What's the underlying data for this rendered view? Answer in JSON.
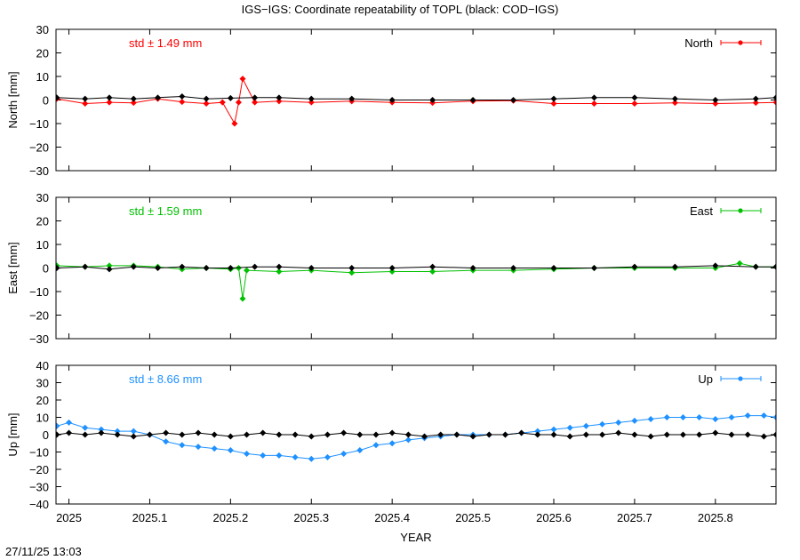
{
  "title": "IGS−IGS: Coordinate repeatability of TOPL (black: COD−IGS)",
  "xlabel": "YEAR",
  "timestamp": "27/11/25 13:03",
  "chart_data": {
    "type": "scatter",
    "title": "IGS−IGS: Coordinate repeatability of TOPL (black: COD−IGS)",
    "xlabel": "YEAR",
    "xlim": [
      2024.984,
      2025.875
    ],
    "xticks": [
      2025,
      2025.1,
      2025.2,
      2025.3,
      2025.4,
      2025.5,
      2025.6,
      2025.7,
      2025.8
    ],
    "xtick_labels": [
      "2025",
      "2025.1",
      "2025.2",
      "2025.3",
      "2025.4",
      "2025.5",
      "2025.6",
      "2025.7",
      "2025.8"
    ],
    "grid": false,
    "legend_position": "top-right",
    "panels": [
      {
        "key": "north",
        "ylabel": "North [mm]",
        "ylim": [
          -30,
          30
        ],
        "yticks": [
          -30,
          -20,
          -10,
          0,
          10,
          20,
          30
        ],
        "ytick_labels": [
          "−30",
          "−20",
          "−10",
          "0",
          "10",
          "20",
          "30"
        ],
        "std_label": "std ± 1.49 mm",
        "series": [
          {
            "name": "North",
            "color": "#ff0000",
            "x": [
              2024.985,
              2025.02,
              2025.05,
              2025.08,
              2025.11,
              2025.14,
              2025.17,
              2025.19,
              2025.205,
              2025.21,
              2025.215,
              2025.23,
              2025.26,
              2025.3,
              2025.35,
              2025.4,
              2025.45,
              2025.5,
              2025.55,
              2025.6,
              2025.65,
              2025.7,
              2025.75,
              2025.8,
              2025.85,
              2025.875
            ],
            "y": [
              0.5,
              -1.5,
              -1,
              -1.2,
              0.5,
              -0.8,
              -1.5,
              -1,
              -10,
              -1,
              9,
              -1,
              -0.5,
              -1,
              -0.5,
              -1,
              -1.2,
              -0.5,
              -0.3,
              -1.5,
              -1.5,
              -1.5,
              -1.2,
              -1.5,
              -1.2,
              -1
            ]
          },
          {
            "name": "COD−IGS",
            "color": "#000000",
            "x": [
              2024.985,
              2025.02,
              2025.05,
              2025.08,
              2025.11,
              2025.14,
              2025.17,
              2025.2,
              2025.23,
              2025.26,
              2025.3,
              2025.35,
              2025.4,
              2025.45,
              2025.5,
              2025.55,
              2025.6,
              2025.65,
              2025.7,
              2025.75,
              2025.8,
              2025.85,
              2025.875
            ],
            "y": [
              1,
              0.5,
              1,
              0.5,
              1,
              1.5,
              0.5,
              0.8,
              1,
              1,
              0.5,
              0.5,
              0,
              0,
              0,
              0,
              0.5,
              1,
              1,
              0.5,
              0,
              0.5,
              1
            ]
          }
        ]
      },
      {
        "key": "east",
        "ylabel": "East [mm]",
        "ylim": [
          -30,
          30
        ],
        "yticks": [
          -30,
          -20,
          -10,
          0,
          10,
          20,
          30
        ],
        "ytick_labels": [
          "−30",
          "−20",
          "−10",
          "0",
          "10",
          "20",
          "30"
        ],
        "std_label": "std ± 1.59 mm",
        "series": [
          {
            "name": "East",
            "color": "#00c000",
            "x": [
              2024.985,
              2025.02,
              2025.05,
              2025.08,
              2025.11,
              2025.14,
              2025.17,
              2025.2,
              2025.21,
              2025.215,
              2025.22,
              2025.26,
              2025.3,
              2025.35,
              2025.4,
              2025.45,
              2025.5,
              2025.55,
              2025.6,
              2025.65,
              2025.7,
              2025.75,
              2025.8,
              2025.83,
              2025.85,
              2025.875
            ],
            "y": [
              1,
              0.5,
              1,
              1,
              0.5,
              -0.5,
              0,
              -0.5,
              0,
              -13,
              -1,
              -1.5,
              -1,
              -2,
              -1.5,
              -1.5,
              -1,
              -1,
              -0.5,
              0,
              0,
              0,
              0,
              2,
              0.5,
              0.5
            ]
          },
          {
            "name": "COD−IGS",
            "color": "#000000",
            "x": [
              2024.985,
              2025.02,
              2025.05,
              2025.08,
              2025.11,
              2025.14,
              2025.17,
              2025.2,
              2025.23,
              2025.26,
              2025.3,
              2025.35,
              2025.4,
              2025.45,
              2025.5,
              2025.55,
              2025.6,
              2025.65,
              2025.7,
              2025.75,
              2025.8,
              2025.85,
              2025.875
            ],
            "y": [
              0,
              0.5,
              -0.5,
              0.5,
              0,
              0.5,
              0,
              0,
              0.5,
              0.5,
              0,
              0,
              0,
              0.5,
              0,
              0,
              0,
              0,
              0.5,
              0.5,
              1,
              0.5,
              0.5
            ]
          }
        ]
      },
      {
        "key": "up",
        "ylabel": "Up [mm]",
        "ylim": [
          -40,
          40
        ],
        "yticks": [
          -40,
          -30,
          -20,
          -10,
          0,
          10,
          20,
          30,
          40
        ],
        "ytick_labels": [
          "−40",
          "−30",
          "−20",
          "−10",
          "0",
          "10",
          "20",
          "30",
          "40"
        ],
        "std_label": "std ± 8.66 mm",
        "series": [
          {
            "name": "Up",
            "color": "#1e90ff",
            "x": [
              2024.985,
              2025.0,
              2025.02,
              2025.04,
              2025.06,
              2025.08,
              2025.1,
              2025.12,
              2025.14,
              2025.16,
              2025.18,
              2025.2,
              2025.22,
              2025.24,
              2025.26,
              2025.28,
              2025.3,
              2025.32,
              2025.34,
              2025.36,
              2025.38,
              2025.4,
              2025.42,
              2025.44,
              2025.46,
              2025.48,
              2025.5,
              2025.52,
              2025.54,
              2025.56,
              2025.58,
              2025.6,
              2025.62,
              2025.64,
              2025.66,
              2025.68,
              2025.7,
              2025.72,
              2025.74,
              2025.76,
              2025.78,
              2025.8,
              2025.82,
              2025.84,
              2025.86,
              2025.875
            ],
            "y": [
              5,
              7,
              4,
              3,
              2,
              2,
              0,
              -4,
              -6,
              -7,
              -8,
              -9,
              -11,
              -12,
              -12,
              -13,
              -14,
              -13,
              -11,
              -9,
              -6,
              -5,
              -3,
              -2,
              -1,
              0,
              0,
              0,
              0,
              1,
              2,
              3,
              4,
              5,
              6,
              7,
              8,
              9,
              10,
              10,
              10,
              9,
              10,
              11,
              11,
              10
            ]
          },
          {
            "name": "COD−IGS",
            "color": "#000000",
            "x": [
              2024.985,
              2025.0,
              2025.02,
              2025.04,
              2025.06,
              2025.08,
              2025.1,
              2025.12,
              2025.14,
              2025.16,
              2025.18,
              2025.2,
              2025.22,
              2025.24,
              2025.26,
              2025.28,
              2025.3,
              2025.32,
              2025.34,
              2025.36,
              2025.38,
              2025.4,
              2025.42,
              2025.44,
              2025.46,
              2025.48,
              2025.5,
              2025.52,
              2025.54,
              2025.56,
              2025.58,
              2025.6,
              2025.62,
              2025.64,
              2025.66,
              2025.68,
              2025.7,
              2025.72,
              2025.74,
              2025.76,
              2025.78,
              2025.8,
              2025.82,
              2025.84,
              2025.86,
              2025.875
            ],
            "y": [
              0,
              1,
              0,
              1,
              0,
              -1,
              0,
              1,
              0,
              1,
              0,
              -1,
              0,
              1,
              0,
              0,
              -1,
              0,
              1,
              0,
              0,
              1,
              0,
              -1,
              0,
              0,
              -1,
              0,
              0,
              1,
              0,
              0,
              -1,
              0,
              0,
              1,
              0,
              -1,
              0,
              0,
              0,
              1,
              0,
              0,
              -1,
              0
            ]
          }
        ]
      }
    ]
  }
}
